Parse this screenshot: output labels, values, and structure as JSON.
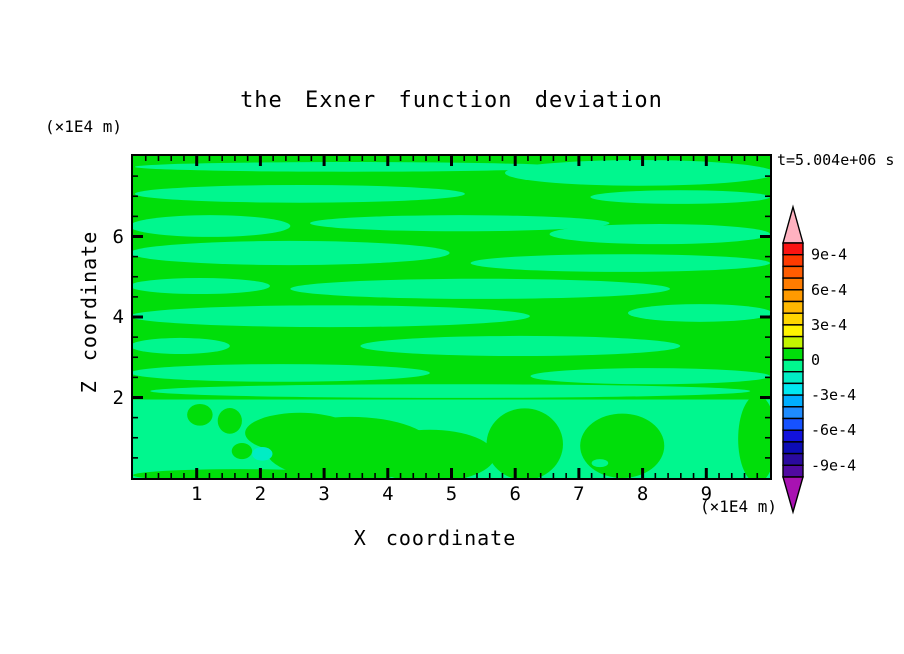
{
  "title": "the Exner function deviation",
  "time_label": "t=5.004e+06 s",
  "axes": {
    "x": {
      "label": "X coordinate",
      "unit": "(×1E4 m)",
      "min": 0,
      "max": 10,
      "major_ticks": [
        1,
        2,
        3,
        4,
        5,
        6,
        7,
        8,
        9
      ],
      "minor_step": 0.2
    },
    "y": {
      "label": "Z coordinate",
      "unit": "(×1E4 m)",
      "min": 0,
      "max": 8,
      "major_ticks": [
        2,
        4,
        6
      ],
      "minor_step": 0.5
    }
  },
  "colorbar": {
    "cap_top_color": "#FFB2C0",
    "cap_bottom_color": "#A812B2",
    "cell_colors": [
      "#FA1412",
      "#FE3A00",
      "#FF5C00",
      "#FF7C00",
      "#FF9A00",
      "#FFB800",
      "#FFD600",
      "#FFF400",
      "#C2F400",
      "#00DE0A",
      "#00F78E",
      "#00EDC4",
      "#00E8F0",
      "#00AEFF",
      "#1E8CFF",
      "#1652FF",
      "#1212DC",
      "#0C0CB4",
      "#2A0A9E",
      "#500AA0"
    ],
    "tick_labels": [
      {
        "text": "9e-4",
        "pos": 1
      },
      {
        "text": "6e-4",
        "pos": 4
      },
      {
        "text": "3e-4",
        "pos": 7
      },
      {
        "text": "0",
        "pos": 10
      },
      {
        "text": "-3e-4",
        "pos": 13
      },
      {
        "text": "-6e-4",
        "pos": 16
      },
      {
        "text": "-9e-4",
        "pos": 19
      }
    ]
  },
  "chart_data": {
    "type": "heatmap",
    "subtype": "filled-contour",
    "title": "the Exner function deviation",
    "xlabel": "X coordinate (×1E4 m)",
    "ylabel": "Z coordinate (×1E4 m)",
    "annotation": "t=5.004e+06 s",
    "xlim": [
      0,
      10
    ],
    "ylim": [
      0,
      8
    ],
    "levels": {
      "min": -0.001,
      "max": 0.001,
      "interval": 0.0001,
      "labeled": [
        0.0009,
        0.0006,
        0.0003,
        0,
        -0.0003,
        -0.0006,
        -0.0009
      ]
    },
    "band_values": {
      "pos1": "0 to 1e-4",
      "neg1": "-1e-4 to 0",
      "neg2": "-2e-4 to -1e-4"
    },
    "band_colors": {
      "pos1": "#00DE0A",
      "neg1": "#00F78E",
      "neg2": "#00EDC4"
    },
    "background_band": "pos1",
    "regions": [
      {
        "band": "neg1",
        "shape": "ellipse",
        "cx": 3.41,
        "cy": 7.73,
        "rx": 3.38,
        "ry": 0.12
      },
      {
        "band": "neg1",
        "shape": "ellipse",
        "cx": 7.96,
        "cy": 7.58,
        "rx": 2.12,
        "ry": 0.32
      },
      {
        "band": "neg1",
        "shape": "ellipse",
        "cx": 2.62,
        "cy": 7.06,
        "rx": 2.59,
        "ry": 0.22
      },
      {
        "band": "neg1",
        "shape": "ellipse",
        "cx": 8.59,
        "cy": 6.98,
        "rx": 1.41,
        "ry": 0.17
      },
      {
        "band": "neg1",
        "shape": "ellipse",
        "cx": 1.21,
        "cy": 6.26,
        "rx": 1.26,
        "ry": 0.27
      },
      {
        "band": "neg1",
        "shape": "ellipse",
        "cx": 5.13,
        "cy": 6.33,
        "rx": 2.35,
        "ry": 0.2
      },
      {
        "band": "neg1",
        "shape": "ellipse",
        "cx": 8.27,
        "cy": 6.06,
        "rx": 1.73,
        "ry": 0.25
      },
      {
        "band": "neg1",
        "shape": "ellipse",
        "cx": 2.46,
        "cy": 5.59,
        "rx": 2.51,
        "ry": 0.3
      },
      {
        "band": "neg1",
        "shape": "ellipse",
        "cx": 7.65,
        "cy": 5.34,
        "rx": 2.35,
        "ry": 0.22
      },
      {
        "band": "neg1",
        "shape": "ellipse",
        "cx": 1.05,
        "cy": 4.77,
        "rx": 1.1,
        "ry": 0.2
      },
      {
        "band": "neg1",
        "shape": "ellipse",
        "cx": 5.45,
        "cy": 4.7,
        "rx": 2.98,
        "ry": 0.25
      },
      {
        "band": "neg1",
        "shape": "ellipse",
        "cx": 3.09,
        "cy": 4.02,
        "rx": 3.14,
        "ry": 0.27
      },
      {
        "band": "neg1",
        "shape": "ellipse",
        "cx": 8.9,
        "cy": 4.1,
        "rx": 1.13,
        "ry": 0.22
      },
      {
        "band": "neg1",
        "shape": "ellipse",
        "cx": 0.74,
        "cy": 3.28,
        "rx": 0.78,
        "ry": 0.2
      },
      {
        "band": "neg1",
        "shape": "ellipse",
        "cx": 6.08,
        "cy": 3.28,
        "rx": 2.51,
        "ry": 0.25
      },
      {
        "band": "neg1",
        "shape": "ellipse",
        "cx": 2.31,
        "cy": 2.61,
        "rx": 2.35,
        "ry": 0.22
      },
      {
        "band": "neg1",
        "shape": "ellipse",
        "cx": 8.12,
        "cy": 2.53,
        "rx": 1.88,
        "ry": 0.2
      },
      {
        "band": "neg1",
        "shape": "ellipse",
        "cx": 4.98,
        "cy": 2.16,
        "rx": 4.71,
        "ry": 0.17
      },
      {
        "band": "neg1",
        "shape": "rect",
        "x": 0,
        "y": 0,
        "w": 10,
        "h": 1.95
      },
      {
        "band": "pos1",
        "shape": "ellipse",
        "cx": 1.05,
        "cy": 1.57,
        "rx": 0.2,
        "ry": 0.27
      },
      {
        "band": "pos1",
        "shape": "ellipse",
        "cx": 1.52,
        "cy": 1.42,
        "rx": 0.19,
        "ry": 0.32
      },
      {
        "band": "pos1",
        "shape": "ellipse",
        "cx": 2.62,
        "cy": 1.12,
        "rx": 0.86,
        "ry": 0.5
      },
      {
        "band": "pos1",
        "shape": "ellipse",
        "cx": 3.41,
        "cy": 0.72,
        "rx": 1.33,
        "ry": 0.8
      },
      {
        "band": "pos1",
        "shape": "ellipse",
        "cx": 4.66,
        "cy": 0.55,
        "rx": 1.02,
        "ry": 0.65
      },
      {
        "band": "pos1",
        "shape": "ellipse",
        "cx": 6.15,
        "cy": 0.84,
        "rx": 0.6,
        "ry": 0.89
      },
      {
        "band": "pos1",
        "shape": "ellipse",
        "cx": 7.68,
        "cy": 0.8,
        "rx": 0.66,
        "ry": 0.8
      },
      {
        "band": "pos1",
        "shape": "ellipse",
        "cx": 9.8,
        "cy": 0.97,
        "rx": 0.3,
        "ry": 1.09
      },
      {
        "band": "pos1",
        "shape": "ellipse",
        "cx": 1.68,
        "cy": 0.07,
        "rx": 1.68,
        "ry": 0.15
      },
      {
        "band": "pos1",
        "shape": "ellipse",
        "cx": 1.71,
        "cy": 0.67,
        "rx": 0.16,
        "ry": 0.2
      },
      {
        "band": "neg1",
        "shape": "ellipse",
        "cx": 7.33,
        "cy": 0.37,
        "rx": 0.13,
        "ry": 0.1
      },
      {
        "band": "neg2",
        "shape": "ellipse",
        "cx": 2.03,
        "cy": 0.6,
        "rx": 0.16,
        "ry": 0.17
      }
    ]
  }
}
